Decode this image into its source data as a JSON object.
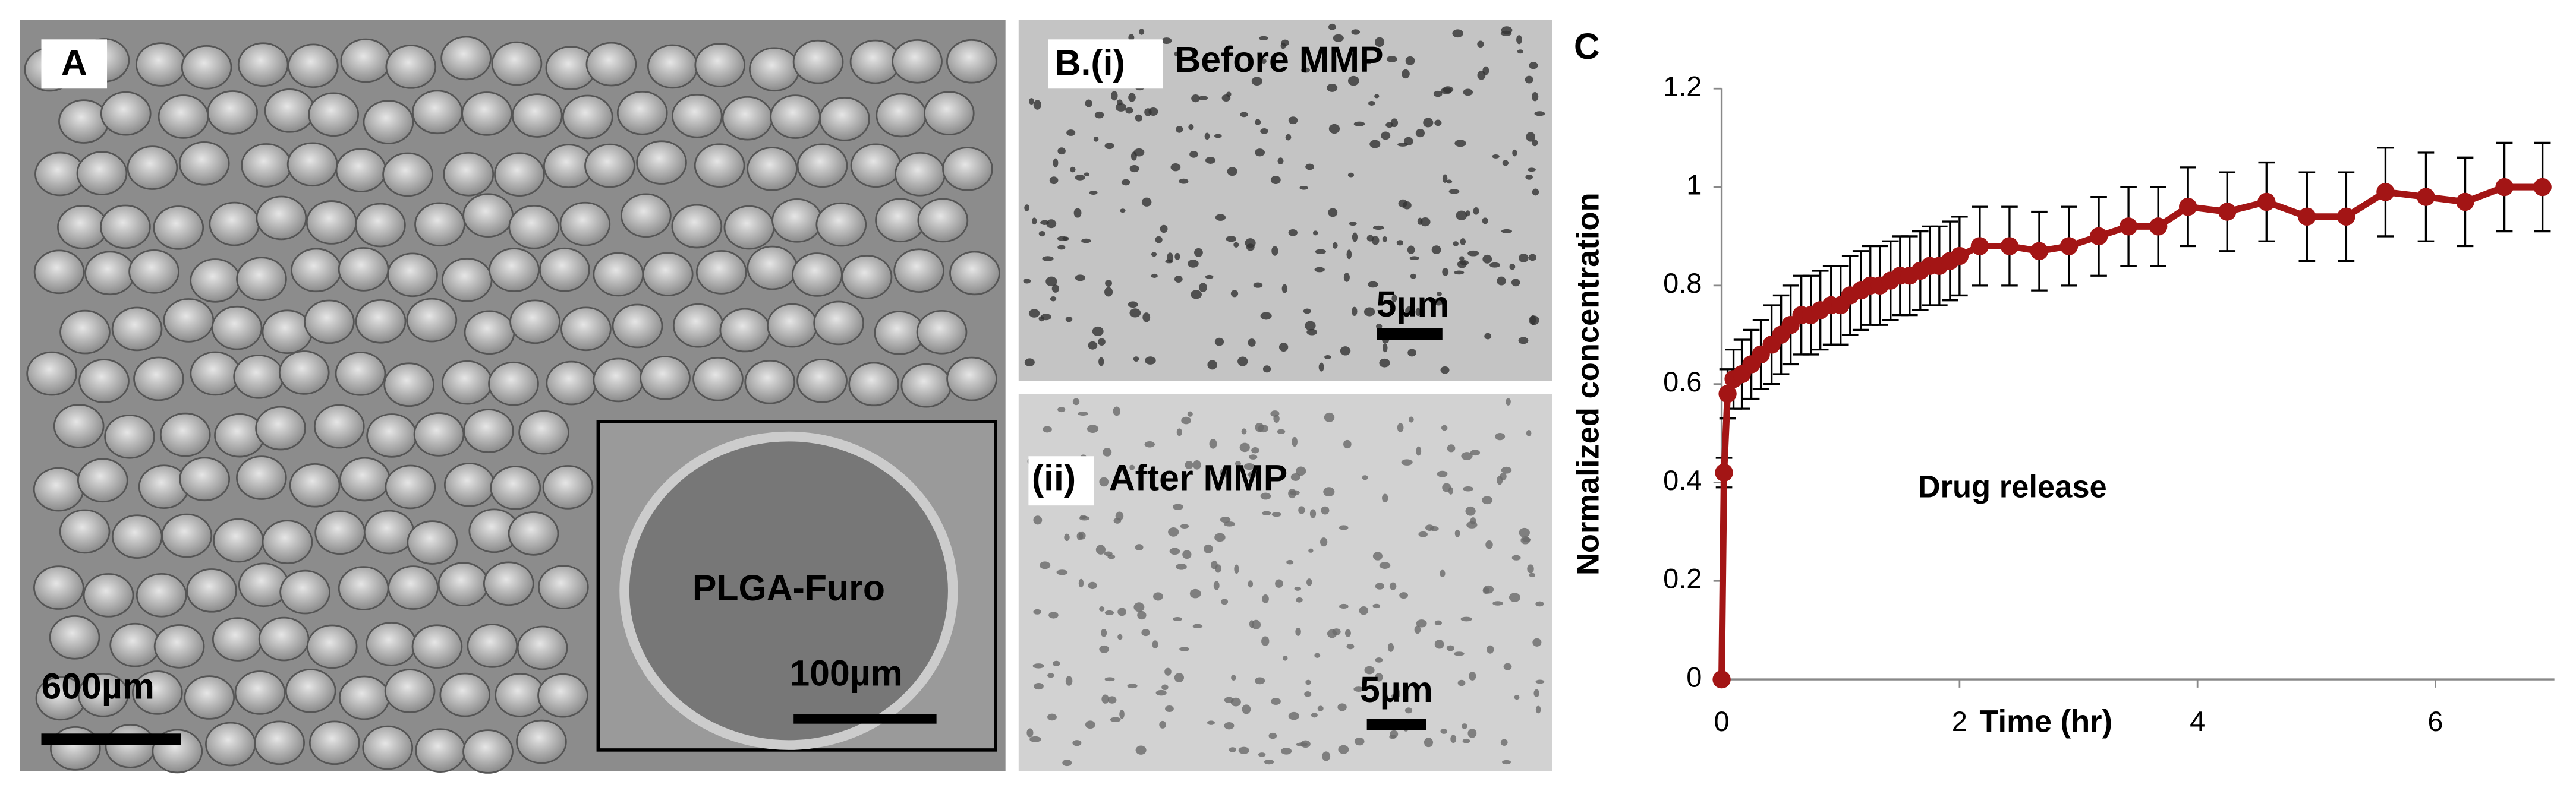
{
  "panels": {
    "a": {
      "label": "A",
      "scale_bar": "600µm",
      "inset_label": "PLGA-Furo",
      "inset_scale_bar": "100µm"
    },
    "b": {
      "label_i": "B.(i)",
      "title_i": "Before MMP",
      "scale_bar_i": "5µm",
      "label_ii": "(ii)",
      "title_ii": "After MMP",
      "scale_bar_ii": "5µm"
    }
  },
  "chart_data": {
    "type": "line",
    "panel_label": "C",
    "annotation": "Drug release",
    "x_label": "Time (hr)",
    "y_label": "Normalized concentration",
    "x": [
      0,
      0.02,
      0.05,
      0.1,
      0.17,
      0.25,
      0.33,
      0.42,
      0.5,
      0.58,
      0.67,
      0.75,
      0.83,
      0.92,
      1.0,
      1.08,
      1.17,
      1.25,
      1.33,
      1.42,
      1.5,
      1.58,
      1.67,
      1.75,
      1.83,
      1.92,
      2.0,
      2.17,
      2.42,
      2.67,
      2.92,
      3.17,
      3.42,
      3.67,
      3.92,
      4.25,
      4.58,
      4.92,
      5.25,
      5.58,
      5.92,
      6.25,
      6.58,
      6.9
    ],
    "values": [
      0,
      0.42,
      0.58,
      0.61,
      0.62,
      0.64,
      0.66,
      0.68,
      0.7,
      0.72,
      0.74,
      0.74,
      0.75,
      0.76,
      0.76,
      0.78,
      0.79,
      0.8,
      0.8,
      0.81,
      0.82,
      0.82,
      0.83,
      0.84,
      0.84,
      0.85,
      0.86,
      0.88,
      0.88,
      0.87,
      0.88,
      0.9,
      0.92,
      0.92,
      0.96,
      0.95,
      0.97,
      0.94,
      0.94,
      0.99,
      0.98,
      0.97,
      1.0,
      1.0
    ],
    "errors": [
      0,
      0.03,
      0.05,
      0.06,
      0.07,
      0.07,
      0.07,
      0.08,
      0.08,
      0.08,
      0.08,
      0.08,
      0.08,
      0.08,
      0.08,
      0.08,
      0.08,
      0.08,
      0.08,
      0.08,
      0.08,
      0.08,
      0.08,
      0.08,
      0.08,
      0.08,
      0.08,
      0.08,
      0.08,
      0.08,
      0.08,
      0.08,
      0.08,
      0.08,
      0.08,
      0.08,
      0.08,
      0.09,
      0.09,
      0.09,
      0.09,
      0.09,
      0.09,
      0.09
    ],
    "color": "#a31515",
    "xlim": [
      0,
      7
    ],
    "xticks": [
      0,
      2,
      4,
      6
    ],
    "ylim": [
      0,
      1.2
    ],
    "yticks": [
      0,
      0.2,
      0.4,
      0.6,
      0.8,
      1,
      1.2
    ]
  }
}
